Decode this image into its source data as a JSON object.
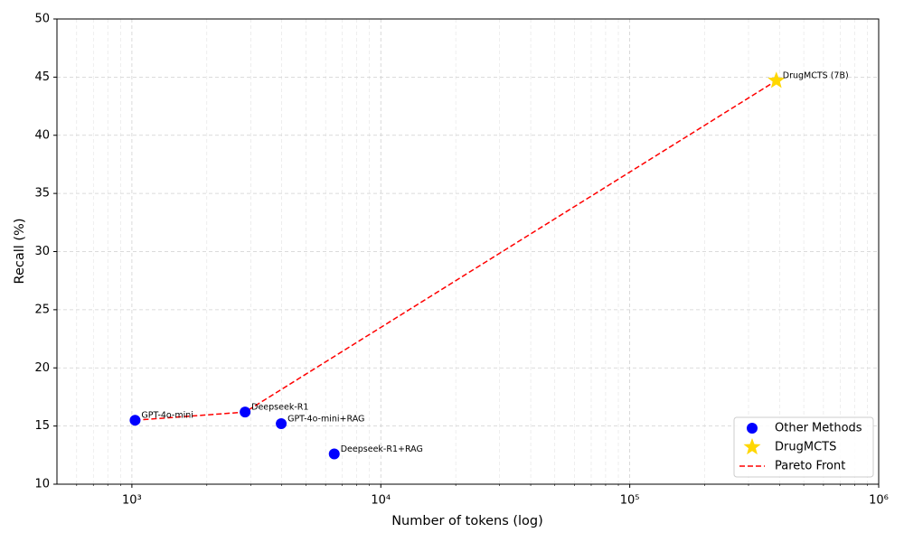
{
  "chart_data": {
    "type": "scatter",
    "xlabel": "Number of tokens (log)",
    "ylabel": "Recall (%)",
    "xscale": "log",
    "grid": true,
    "legend": "lower right",
    "xlim": [
      500,
      1000000
    ],
    "xticks": [
      {
        "value": 1000,
        "label": "10³"
      },
      {
        "value": 10000,
        "label": "10⁴"
      },
      {
        "value": 100000,
        "label": "10⁵"
      },
      {
        "value": 1000000,
        "label": "10⁶"
      }
    ],
    "xminorticks": [
      600,
      700,
      800,
      900,
      2000,
      3000,
      4000,
      5000,
      6000,
      7000,
      8000,
      9000,
      20000,
      30000,
      40000,
      50000,
      60000,
      70000,
      80000,
      90000,
      200000,
      300000,
      400000,
      500000,
      600000,
      700000,
      800000,
      900000
    ],
    "ylim": [
      10,
      50
    ],
    "yticks": [
      10,
      15,
      20,
      25,
      30,
      35,
      40,
      45,
      50
    ],
    "series": [
      {
        "name": "Other Methods",
        "color": "#0000ff",
        "marker": "circle",
        "x": [
          1030,
          2850,
          3980,
          6500
        ],
        "values": [
          15.5,
          16.2,
          15.2,
          12.6
        ],
        "labels": [
          "GPT-4o-mini",
          "Deepseek-R1",
          "GPT-4o-mini+RAG",
          "Deepseek-R1+RAG"
        ]
      },
      {
        "name": "DrugMCTS",
        "color": "#ffd700",
        "marker": "star",
        "x": [
          388000
        ],
        "values": [
          44.7
        ],
        "labels": [
          "DrugMCTS (7B)"
        ]
      },
      {
        "name": "Pareto Front",
        "color": "#ff0000",
        "marker": "line",
        "x": [
          1030,
          2850,
          388000
        ],
        "values": [
          15.5,
          16.2,
          44.7
        ]
      }
    ]
  }
}
